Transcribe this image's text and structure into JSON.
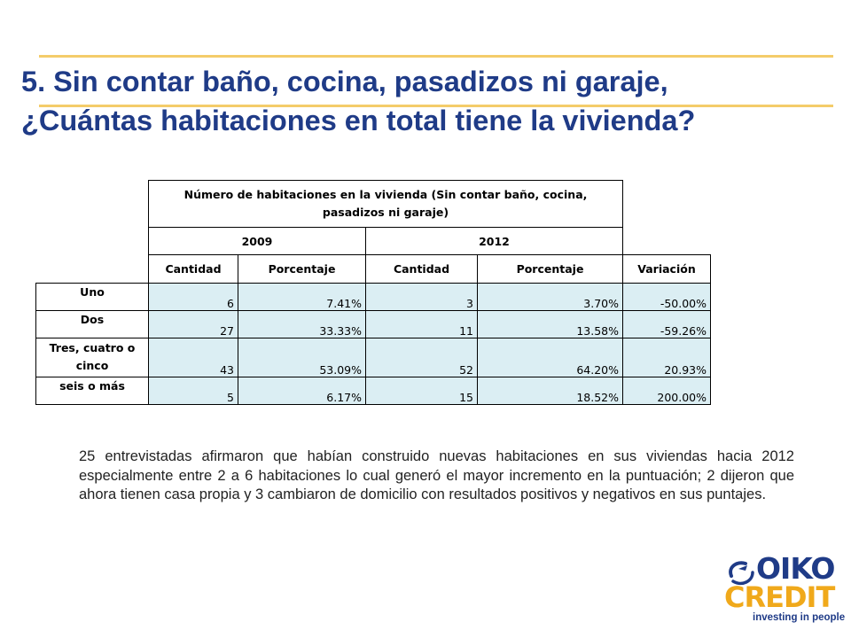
{
  "title": {
    "line1": "5. Sin contar baño, cocina, pasadizos ni garaje,",
    "line2": "¿Cuántas habitaciones en total tiene la vivienda?"
  },
  "table": {
    "main_header": "Número de habitaciones en  la vivienda (Sin contar baño, cocina, pasadizos ni garaje)",
    "year_2009": "2009",
    "year_2012": "2012",
    "columns": [
      "Cantidad",
      "Porcentaje",
      "Cantidad",
      "Porcentaje",
      "Variación"
    ],
    "rows": [
      {
        "label": "Uno",
        "c2009": "6",
        "p2009": "7.41%",
        "c2012": "3",
        "p2012": "3.70%",
        "var": "-50.00%"
      },
      {
        "label": "Dos",
        "c2009": "27",
        "p2009": "33.33%",
        "c2012": "11",
        "p2012": "13.58%",
        "var": "-59.26%"
      },
      {
        "label": "Tres, cuatro o cinco",
        "c2009": "43",
        "p2009": "53.09%",
        "c2012": "52",
        "p2012": "64.20%",
        "var": "20.93%"
      },
      {
        "label": "seis o más",
        "c2009": "5",
        "p2009": "6.17%",
        "c2012": "15",
        "p2012": "18.52%",
        "var": "200.00%"
      }
    ]
  },
  "note": "25 entrevistadas afirmaron que habían construido nuevas habitaciones en sus viviendas hacia 2012 especialmente entre 2 a 6 habitaciones lo cual generó el mayor incremento en la puntuación; 2 dijeron que ahora tienen casa propia y 3 cambiaron de domicilio con resultados positivos y negativos en sus puntajes.",
  "logo": {
    "word1": "OIKO",
    "word2": "CREDIT",
    "tagline": "investing in people",
    "colors": {
      "blue": "#1f3b87",
      "orange": "#f0a91b"
    }
  },
  "colors": {
    "title": "#1f3b87",
    "rule": "#f4cc6a",
    "cell_fill": "#dbeef3"
  }
}
